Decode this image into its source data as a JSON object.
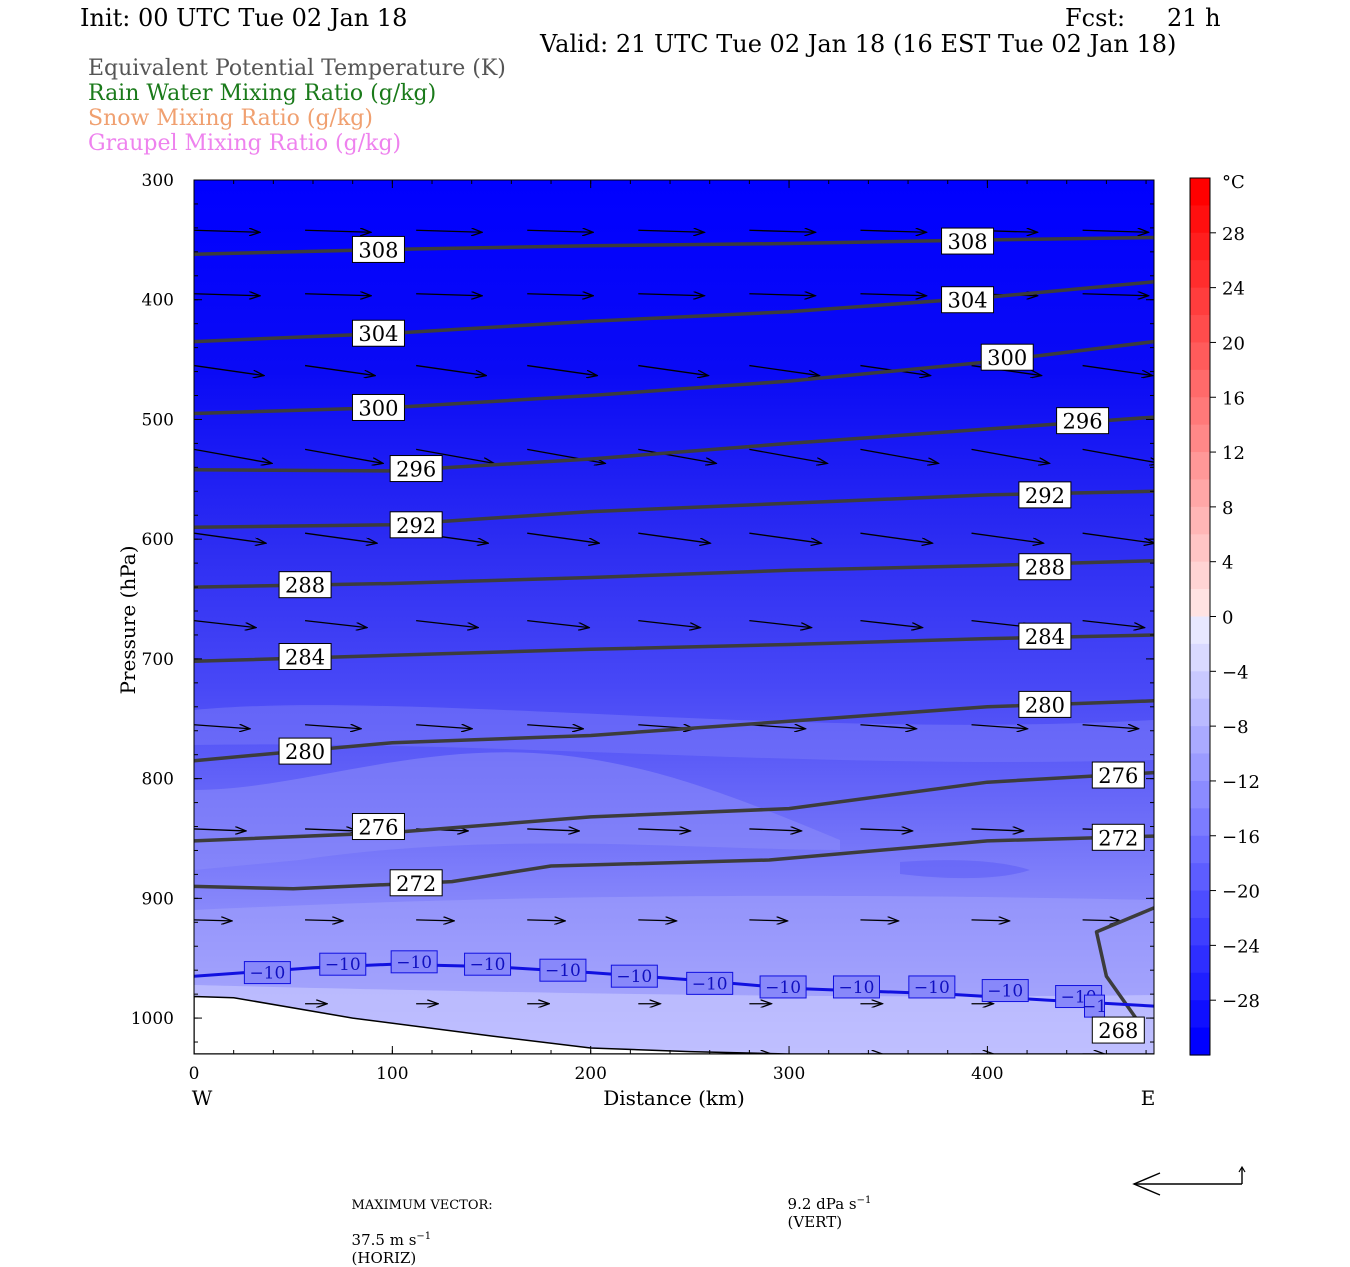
{
  "header": {
    "init": "Init: 00 UTC Tue 02 Jan 18",
    "fcst_label": "Fcst:",
    "fcst_value": "21 h",
    "valid": "Valid: 21 UTC Tue 02 Jan 18 (16 EST Tue 02 Jan 18)"
  },
  "legend": [
    {
      "label": "Equivalent Potential Temperature (K)",
      "color": "#555555"
    },
    {
      "label": "Rain Water Mixing Ratio (g/kg)",
      "color": "#1a7a1a"
    },
    {
      "label": "Snow Mixing Ratio (g/kg)",
      "color": "#f0a070"
    },
    {
      "label": "Graupel Mixing Ratio (g/kg)",
      "color": "#ee82ee"
    }
  ],
  "chart_data": {
    "type": "cross-section",
    "xlabel": "Distance (km)",
    "ylabel": "Pressure (hPa)",
    "x_ticks": [
      "0",
      "100",
      "200",
      "300",
      "400"
    ],
    "x_range": [
      0,
      484
    ],
    "x_end_labels": {
      "left": "W",
      "right": "E"
    },
    "y_ticks": [
      "300",
      "400",
      "500",
      "600",
      "700",
      "800",
      "900",
      "1000"
    ],
    "y_range": [
      300,
      1030
    ],
    "colorbar": {
      "unit": "°C",
      "tick_labels": [
        "28",
        "24",
        "20",
        "16",
        "12",
        "8",
        "4",
        "0",
        "−4",
        "−8",
        "−12",
        "−16",
        "−20",
        "−24",
        "−28"
      ],
      "range": [
        -32,
        32
      ]
    },
    "theta_e_contours": [
      {
        "value": "308",
        "points": [
          [
            0,
            362
          ],
          [
            100,
            358
          ],
          [
            200,
            355
          ],
          [
            300,
            353
          ],
          [
            400,
            350
          ],
          [
            484,
            348
          ]
        ],
        "labels": [
          [
            93,
            358
          ],
          [
            390,
            351
          ]
        ]
      },
      {
        "value": "304",
        "points": [
          [
            0,
            435
          ],
          [
            100,
            428
          ],
          [
            200,
            418
          ],
          [
            300,
            410
          ],
          [
            400,
            398
          ],
          [
            484,
            385
          ]
        ],
        "labels": [
          [
            93,
            428
          ],
          [
            390,
            400
          ]
        ]
      },
      {
        "value": "300",
        "points": [
          [
            0,
            495
          ],
          [
            100,
            490
          ],
          [
            200,
            480
          ],
          [
            300,
            468
          ],
          [
            400,
            452
          ],
          [
            484,
            435
          ]
        ],
        "labels": [
          [
            93,
            490
          ],
          [
            410,
            448
          ]
        ]
      },
      {
        "value": "296",
        "points": [
          [
            0,
            542
          ],
          [
            100,
            543
          ],
          [
            200,
            533
          ],
          [
            300,
            520
          ],
          [
            400,
            508
          ],
          [
            484,
            498
          ]
        ],
        "labels": [
          [
            112,
            541
          ],
          [
            448,
            501
          ]
        ]
      },
      {
        "value": "292",
        "points": [
          [
            0,
            590
          ],
          [
            100,
            588
          ],
          [
            200,
            577
          ],
          [
            300,
            570
          ],
          [
            400,
            563
          ],
          [
            484,
            560
          ]
        ],
        "labels": [
          [
            112,
            588
          ],
          [
            429,
            563
          ]
        ]
      },
      {
        "value": "288",
        "points": [
          [
            0,
            640
          ],
          [
            100,
            637
          ],
          [
            200,
            632
          ],
          [
            300,
            626
          ],
          [
            400,
            622
          ],
          [
            484,
            618
          ]
        ],
        "labels": [
          [
            56,
            638
          ],
          [
            429,
            623
          ]
        ]
      },
      {
        "value": "284",
        "points": [
          [
            0,
            702
          ],
          [
            100,
            697
          ],
          [
            200,
            692
          ],
          [
            300,
            688
          ],
          [
            400,
            683
          ],
          [
            484,
            680
          ]
        ],
        "labels": [
          [
            56,
            698
          ],
          [
            429,
            681
          ]
        ]
      },
      {
        "value": "280",
        "points": [
          [
            0,
            785
          ],
          [
            100,
            770
          ],
          [
            200,
            764
          ],
          [
            300,
            752
          ],
          [
            400,
            740
          ],
          [
            484,
            735
          ]
        ],
        "labels": [
          [
            56,
            777
          ],
          [
            429,
            738
          ]
        ]
      },
      {
        "value": "276",
        "points": [
          [
            0,
            852
          ],
          [
            100,
            845
          ],
          [
            200,
            832
          ],
          [
            300,
            825
          ],
          [
            400,
            803
          ],
          [
            484,
            795
          ]
        ],
        "labels": [
          [
            93,
            840
          ],
          [
            466,
            797
          ]
        ]
      },
      {
        "value": "272",
        "points": [
          [
            0,
            890
          ],
          [
            50,
            892
          ],
          [
            130,
            886
          ],
          [
            180,
            873
          ],
          [
            290,
            868
          ],
          [
            400,
            852
          ],
          [
            484,
            848
          ]
        ],
        "labels": [
          [
            112,
            887
          ],
          [
            466,
            849
          ]
        ]
      },
      {
        "value": "268",
        "points": [
          [
            477,
            1005
          ],
          [
            460,
            965
          ],
          [
            455,
            928
          ],
          [
            484,
            908
          ]
        ],
        "labels": [
          [
            466,
            1010
          ]
        ]
      }
    ],
    "isotherm": {
      "value": "−10",
      "points": [
        [
          0,
          965
        ],
        [
          60,
          958
        ],
        [
          100,
          955
        ],
        [
          150,
          957
        ],
        [
          200,
          962
        ],
        [
          250,
          968
        ],
        [
          300,
          975
        ],
        [
          380,
          980
        ],
        [
          430,
          985
        ],
        [
          484,
          990
        ]
      ],
      "labels": [
        [
          37,
          962
        ],
        [
          75,
          955
        ],
        [
          111,
          953
        ],
        [
          148,
          955
        ],
        [
          186,
          960
        ],
        [
          222,
          965
        ],
        [
          260,
          971
        ],
        [
          297,
          974
        ],
        [
          334,
          974
        ],
        [
          372,
          974
        ],
        [
          409,
          977
        ],
        [
          446,
          982
        ]
      ],
      "last_label_clipped": "−1"
    },
    "terrain": [
      [
        0,
        982
      ],
      [
        20,
        983
      ],
      [
        80,
        1000
      ],
      [
        150,
        1015
      ],
      [
        200,
        1025
      ],
      [
        250,
        1028
      ],
      [
        300,
        1030
      ],
      [
        484,
        1030
      ]
    ],
    "max_vector_horiz": "37.5 m s",
    "max_vector_vert": "9.2 dPa s",
    "footer_label": "MAXIMUM VECTOR:"
  },
  "footer": {
    "horiz_label": "MAXIMUM VECTOR:",
    "horiz_value": "37.5 m s",
    "exp": "−1",
    "horiz_unit": "(HORIZ)",
    "vert_value": "9.2 dPa s",
    "vert_unit": "(VERT)"
  }
}
